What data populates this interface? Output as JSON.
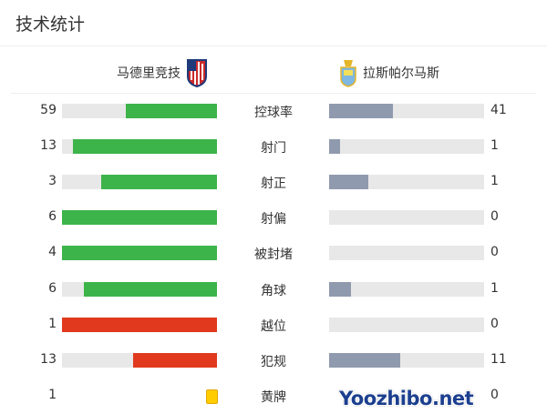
{
  "title": "技术统计",
  "home": {
    "name": "马德里竞技",
    "logo": "atletico-crest"
  },
  "away": {
    "name": "拉斯帕尔马斯",
    "logo": "las-palmas-crest"
  },
  "colors": {
    "home_bar": "#3cb44a",
    "foul_bar": "#e0391e",
    "away_bar": "#8f9aae",
    "track": "#e8e8e8",
    "yellow": "#ffcc00"
  },
  "stats": [
    {
      "label": "控球率",
      "home": "59",
      "away": "41",
      "home_frac": 0.59,
      "away_frac": 0.41,
      "color": "#3cb44a"
    },
    {
      "label": "射门",
      "home": "13",
      "away": "1",
      "home_frac": 0.929,
      "away_frac": 0.071,
      "color": "#3cb44a"
    },
    {
      "label": "射正",
      "home": "3",
      "away": "1",
      "home_frac": 0.75,
      "away_frac": 0.25,
      "color": "#3cb44a"
    },
    {
      "label": "射偏",
      "home": "6",
      "away": "0",
      "home_frac": 1,
      "away_frac": 0,
      "color": "#3cb44a"
    },
    {
      "label": "被封堵",
      "home": "4",
      "away": "0",
      "home_frac": 1,
      "away_frac": 0,
      "color": "#3cb44a"
    },
    {
      "label": "角球",
      "home": "6",
      "away": "1",
      "home_frac": 0.857,
      "away_frac": 0.143,
      "color": "#3cb44a"
    },
    {
      "label": "越位",
      "home": "1",
      "away": "0",
      "home_frac": 1,
      "away_frac": 0,
      "color": "#e0391e"
    },
    {
      "label": "犯规",
      "home": "13",
      "away": "11",
      "home_frac": 0.542,
      "away_frac": 0.458,
      "color": "#e0391e"
    }
  ],
  "yellow": {
    "label": "黄牌",
    "home": "1",
    "away": "0"
  },
  "watermark": "Yoozhibo.net"
}
